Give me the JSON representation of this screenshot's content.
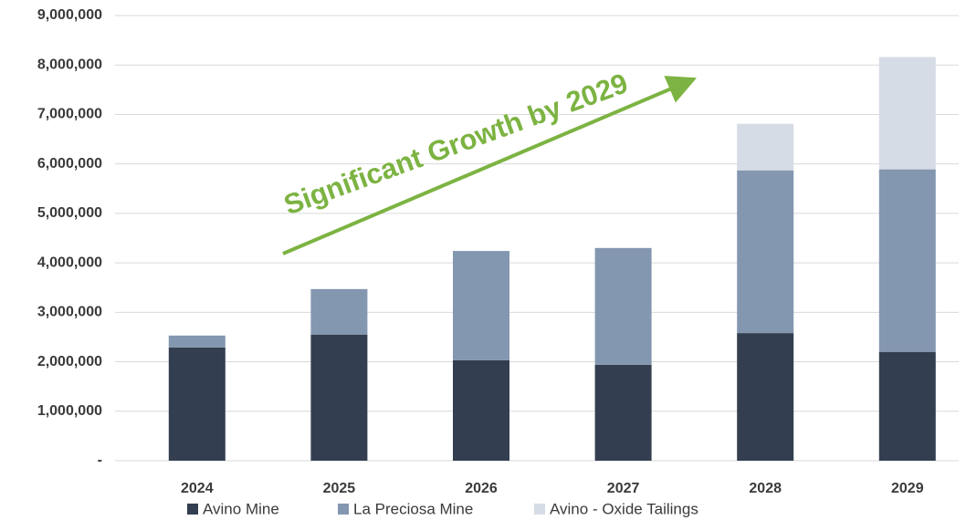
{
  "chart_data": {
    "type": "stacked_bar",
    "annotation": "Significant Growth by 2029",
    "categories": [
      "2024",
      "2025",
      "2026",
      "2027",
      "2028",
      "2029"
    ],
    "series": [
      {
        "name": "Avino Mine",
        "color": "#333f50",
        "values": [
          2290000,
          2550000,
          2030000,
          1940000,
          2580000,
          2200000
        ]
      },
      {
        "name": "La Preciosa Mine",
        "color": "#8497b0",
        "values": [
          240000,
          920000,
          2210000,
          2360000,
          3290000,
          3690000
        ]
      },
      {
        "name": "Avino - Oxide Tailings",
        "color": "#d6dce5",
        "values": [
          0,
          0,
          0,
          0,
          940000,
          2270000
        ]
      }
    ],
    "ylim": [
      0,
      9000000
    ],
    "yticks": [
      {
        "value": 0,
        "label": "-"
      },
      {
        "value": 1000000,
        "label": "1,000,000"
      },
      {
        "value": 2000000,
        "label": "2,000,000"
      },
      {
        "value": 3000000,
        "label": "3,000,000"
      },
      {
        "value": 4000000,
        "label": "4,000,000"
      },
      {
        "value": 5000000,
        "label": "5,000,000"
      },
      {
        "value": 6000000,
        "label": "6,000,000"
      },
      {
        "value": 7000000,
        "label": "7,000,000"
      },
      {
        "value": 8000000,
        "label": "8,000,000"
      },
      {
        "value": 9000000,
        "label": "9,000,000"
      }
    ],
    "grid": true
  }
}
